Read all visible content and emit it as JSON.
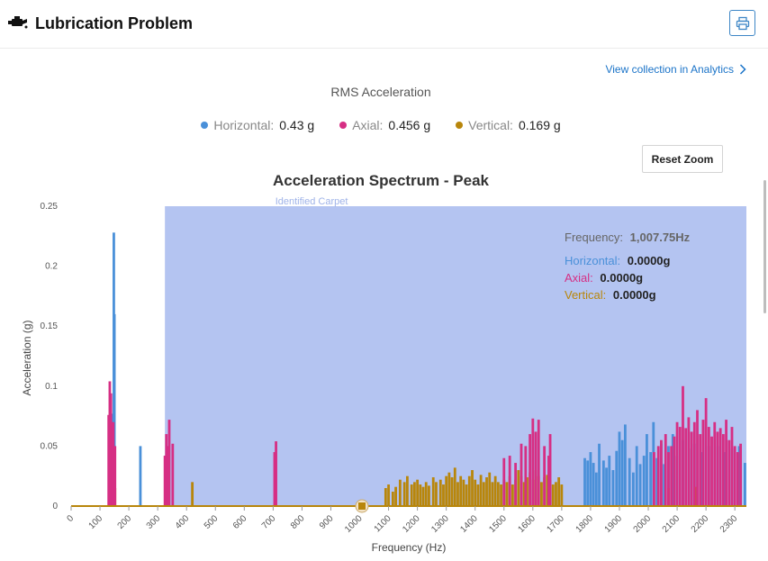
{
  "header": {
    "title": "Lubrication Problem",
    "icon": "engine-oil-icon",
    "print_icon": "printer-icon"
  },
  "analytics_link": {
    "label": "View collection in Analytics",
    "icon": "chevron-right-icon"
  },
  "rms": {
    "title": "RMS Acceleration",
    "items": [
      {
        "label": "Horizontal:",
        "value": "0.43 g",
        "color": "#4a90d9"
      },
      {
        "label": "Axial:",
        "value": "0.456 g",
        "color": "#d62f84"
      },
      {
        "label": "Vertical:",
        "value": "0.169 g",
        "color": "#b8860b"
      }
    ]
  },
  "reset_zoom": "Reset Zoom",
  "tooltip": {
    "frequency_label": "Frequency:",
    "frequency_value": "1,007.75Hz",
    "rows": [
      {
        "label": "Horizontal:",
        "value": "0.0000g"
      },
      {
        "label": "Axial:",
        "value": "0.0000g"
      },
      {
        "label": "Vertical:",
        "value": "0.0000g"
      }
    ]
  },
  "chart_data": {
    "type": "bar",
    "title": "Acceleration Spectrum - Peak",
    "xlabel": "Frequency (Hz)",
    "ylabel": "Acceleration (g)",
    "xlim": [
      0,
      2340
    ],
    "ylim": [
      0,
      0.25
    ],
    "x_ticks": [
      0,
      100,
      200,
      300,
      400,
      500,
      600,
      700,
      800,
      900,
      1000,
      1100,
      1200,
      1300,
      1400,
      1500,
      1600,
      1700,
      1800,
      1900,
      2000,
      2100,
      2200,
      2300
    ],
    "y_ticks": [
      {
        "value": 0,
        "label": "0"
      },
      {
        "value": 0.05,
        "label": "0.05"
      },
      {
        "value": 0.1,
        "label": "0.1"
      },
      {
        "value": 0.15,
        "label": "0.15"
      },
      {
        "value": 0.2,
        "label": "0.2"
      },
      {
        "value": 0.25,
        "label": "0.25"
      }
    ],
    "band": {
      "label": "Identified Carpet",
      "from": 325,
      "to": 2340,
      "color": "#b4c4f1"
    },
    "hover_x": 1007.75,
    "colors": {
      "horizontal": "#4a90d9",
      "axial": "#d62f84",
      "vertical": "#b8860b"
    },
    "series": [
      {
        "name": "Horizontal",
        "points": [
          [
            145,
            0.077
          ],
          [
            148,
            0.228
          ],
          [
            150,
            0.16
          ],
          [
            240,
            0.05
          ],
          [
            1780,
            0.04
          ],
          [
            1790,
            0.038
          ],
          [
            1800,
            0.045
          ],
          [
            1810,
            0.036
          ],
          [
            1820,
            0.028
          ],
          [
            1830,
            0.052
          ],
          [
            1845,
            0.038
          ],
          [
            1855,
            0.032
          ],
          [
            1865,
            0.042
          ],
          [
            1878,
            0.03
          ],
          [
            1890,
            0.046
          ],
          [
            1900,
            0.062
          ],
          [
            1910,
            0.055
          ],
          [
            1920,
            0.068
          ],
          [
            1935,
            0.04
          ],
          [
            1948,
            0.028
          ],
          [
            1960,
            0.05
          ],
          [
            1972,
            0.035
          ],
          [
            1985,
            0.042
          ],
          [
            1995,
            0.06
          ],
          [
            2008,
            0.045
          ],
          [
            2018,
            0.07
          ],
          [
            2030,
            0.04
          ],
          [
            2045,
            0.052
          ],
          [
            2055,
            0.035
          ],
          [
            2070,
            0.05
          ],
          [
            2085,
            0.06
          ],
          [
            2100,
            0.042
          ],
          [
            2120,
            0.055
          ],
          [
            2140,
            0.048
          ],
          [
            2160,
            0.052
          ],
          [
            2185,
            0.045
          ],
          [
            2210,
            0.05
          ],
          [
            2240,
            0.05
          ],
          [
            2265,
            0.045
          ],
          [
            2290,
            0.048
          ],
          [
            2315,
            0.05
          ],
          [
            2335,
            0.036
          ]
        ]
      },
      {
        "name": "Axial",
        "points": [
          [
            130,
            0.076
          ],
          [
            134,
            0.104
          ],
          [
            138,
            0.094
          ],
          [
            142,
            0.067
          ],
          [
            146,
            0.07
          ],
          [
            152,
            0.05
          ],
          [
            325,
            0.042
          ],
          [
            330,
            0.06
          ],
          [
            335,
            0.05
          ],
          [
            340,
            0.072
          ],
          [
            352,
            0.052
          ],
          [
            705,
            0.045
          ],
          [
            710,
            0.054
          ],
          [
            1500,
            0.04
          ],
          [
            1520,
            0.042
          ],
          [
            1540,
            0.036
          ],
          [
            1560,
            0.052
          ],
          [
            1575,
            0.05
          ],
          [
            1590,
            0.06
          ],
          [
            1600,
            0.073
          ],
          [
            1610,
            0.062
          ],
          [
            1620,
            0.072
          ],
          [
            1640,
            0.05
          ],
          [
            1655,
            0.042
          ],
          [
            1660,
            0.06
          ],
          [
            2020,
            0.045
          ],
          [
            2035,
            0.05
          ],
          [
            2045,
            0.055
          ],
          [
            2060,
            0.06
          ],
          [
            2070,
            0.045
          ],
          [
            2080,
            0.05
          ],
          [
            2090,
            0.058
          ],
          [
            2100,
            0.07
          ],
          [
            2110,
            0.066
          ],
          [
            2120,
            0.1
          ],
          [
            2130,
            0.065
          ],
          [
            2140,
            0.074
          ],
          [
            2150,
            0.062
          ],
          [
            2160,
            0.07
          ],
          [
            2170,
            0.08
          ],
          [
            2180,
            0.06
          ],
          [
            2190,
            0.072
          ],
          [
            2200,
            0.09
          ],
          [
            2210,
            0.066
          ],
          [
            2220,
            0.058
          ],
          [
            2230,
            0.07
          ],
          [
            2240,
            0.062
          ],
          [
            2250,
            0.065
          ],
          [
            2260,
            0.06
          ],
          [
            2270,
            0.072
          ],
          [
            2280,
            0.055
          ],
          [
            2290,
            0.066
          ],
          [
            2300,
            0.05
          ],
          [
            2310,
            0.045
          ],
          [
            2320,
            0.052
          ]
        ]
      },
      {
        "name": "Vertical",
        "points": [
          [
            135,
            0.018
          ],
          [
            148,
            0.02
          ],
          [
            152,
            0.015
          ],
          [
            420,
            0.02
          ],
          [
            1090,
            0.015
          ],
          [
            1100,
            0.018
          ],
          [
            1115,
            0.012
          ],
          [
            1125,
            0.016
          ],
          [
            1140,
            0.022
          ],
          [
            1155,
            0.02
          ],
          [
            1165,
            0.025
          ],
          [
            1180,
            0.018
          ],
          [
            1190,
            0.02
          ],
          [
            1200,
            0.022
          ],
          [
            1210,
            0.018
          ],
          [
            1220,
            0.016
          ],
          [
            1230,
            0.02
          ],
          [
            1240,
            0.017
          ],
          [
            1255,
            0.024
          ],
          [
            1265,
            0.02
          ],
          [
            1280,
            0.022
          ],
          [
            1290,
            0.018
          ],
          [
            1300,
            0.025
          ],
          [
            1310,
            0.028
          ],
          [
            1320,
            0.024
          ],
          [
            1330,
            0.032
          ],
          [
            1340,
            0.02
          ],
          [
            1350,
            0.025
          ],
          [
            1360,
            0.022
          ],
          [
            1370,
            0.018
          ],
          [
            1380,
            0.025
          ],
          [
            1390,
            0.03
          ],
          [
            1400,
            0.022
          ],
          [
            1410,
            0.018
          ],
          [
            1420,
            0.026
          ],
          [
            1430,
            0.02
          ],
          [
            1440,
            0.024
          ],
          [
            1450,
            0.028
          ],
          [
            1460,
            0.02
          ],
          [
            1470,
            0.025
          ],
          [
            1480,
            0.02
          ],
          [
            1490,
            0.018
          ],
          [
            1500,
            0.022
          ],
          [
            1510,
            0.02
          ],
          [
            1520,
            0.025
          ],
          [
            1530,
            0.018
          ],
          [
            1540,
            0.022
          ],
          [
            1550,
            0.03
          ],
          [
            1560,
            0.025
          ],
          [
            1570,
            0.02
          ],
          [
            1580,
            0.024
          ],
          [
            1590,
            0.028
          ],
          [
            1600,
            0.022
          ],
          [
            1610,
            0.03
          ],
          [
            1620,
            0.025
          ],
          [
            1630,
            0.02
          ],
          [
            1640,
            0.024
          ],
          [
            1650,
            0.026
          ],
          [
            1660,
            0.022
          ],
          [
            1670,
            0.018
          ],
          [
            1680,
            0.02
          ],
          [
            1690,
            0.024
          ],
          [
            1700,
            0.018
          ],
          [
            2070,
            0.015
          ],
          [
            2165,
            0.016
          ]
        ]
      }
    ]
  }
}
